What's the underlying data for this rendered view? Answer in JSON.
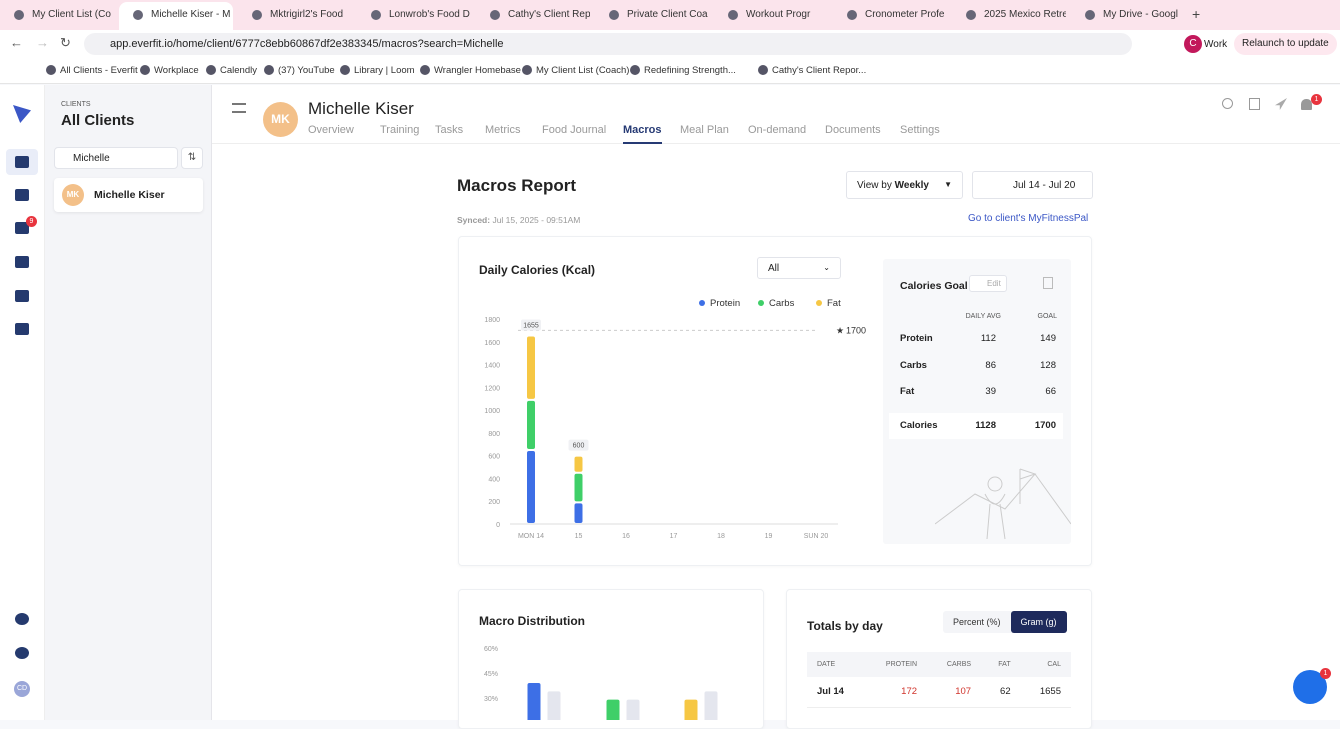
{
  "browser": {
    "tabs": [
      "My Client List (Co",
      "Michelle Kiser - M",
      "Mktrigirl2's Food ",
      "Lonwrob's Food D",
      "Cathy's Client Rep",
      "Private Client Coa",
      "Workout Progr",
      "Cronometer Profe",
      "2025 Mexico Retre",
      "My Drive - Googl"
    ],
    "active_tab": 1,
    "url": "app.everfit.io/home/client/6777c8ebb60867df2e383345/macros?search=Michelle",
    "profile_initial": "C",
    "profile": "Work",
    "relaunch": "Relaunch to update",
    "bookmarks": [
      "All Clients - Everfit",
      "Workplace",
      "Calendly",
      "(37) YouTube",
      "Library | Loom",
      "Wrangler Homebase",
      "My Client List (Coach)",
      "Redefining Strength...",
      "Cathy's Client Repor..."
    ]
  },
  "sidebar": {
    "message_badge": "9",
    "user_initials": "CD"
  },
  "clients": {
    "label": "CLIENTS",
    "title": "All Clients",
    "search": "Michelle",
    "items": [
      {
        "initials": "MK",
        "name": "Michelle Kiser"
      }
    ]
  },
  "header": {
    "initials": "MK",
    "name": "Michelle Kiser",
    "nav": [
      "Overview",
      "Training",
      "Tasks",
      "Metrics",
      "Food Journal",
      "Macros",
      "Meal Plan",
      "On-demand",
      "Documents",
      "Settings"
    ],
    "active_nav": 5,
    "notification_badge": "1"
  },
  "report": {
    "title": "Macros Report",
    "view_by": "View by",
    "view": "Weekly",
    "date_range": "Jul 14 - Jul 20",
    "synced_label": "Synced:",
    "synced": "Jul 15, 2025 - 09:51AM",
    "mfp_link": "Go to client's MyFitnessPal"
  },
  "chart_data": [
    {
      "type": "stacked_bar",
      "title": "Daily Calories (Kcal)",
      "filter": "All",
      "categories": [
        "MON 14",
        "15",
        "16",
        "17",
        "18",
        "19",
        "SUN 20"
      ],
      "series": [
        {
          "name": "Protein",
          "color": "#3d6fe6",
          "values": [
            650,
            190,
            null,
            null,
            null,
            null,
            null
          ]
        },
        {
          "name": "Carbs",
          "color": "#3fcf68",
          "values": [
            440,
            260,
            null,
            null,
            null,
            null,
            null
          ]
        },
        {
          "name": "Fat",
          "color": "#f6c744",
          "values": [
            565,
            150,
            null,
            null,
            null,
            null,
            null
          ]
        }
      ],
      "totals": [
        1655,
        600,
        null,
        null,
        null,
        null,
        null
      ],
      "goal": 1700,
      "ylim": [
        0,
        1800
      ],
      "yticks": [
        0,
        200,
        400,
        600,
        800,
        1000,
        1200,
        1400,
        1600,
        1800
      ]
    },
    {
      "type": "grouped_bar",
      "title": "Macro Distribution",
      "categories": [
        null,
        null,
        null
      ],
      "series": [
        {
          "color": "#3d6fe6",
          "values": [
            39,
            null,
            null
          ]
        },
        {
          "color": "#3fcf68",
          "values": [
            null,
            29,
            null
          ]
        },
        {
          "color": "#f6c744",
          "values": [
            null,
            null,
            29
          ]
        },
        {
          "color": "#e4e6ee",
          "values": [
            34,
            29,
            34
          ]
        }
      ],
      "ylim": [
        0,
        60
      ],
      "yticks": [
        {
          "value": 30,
          "label": "30%"
        },
        {
          "value": 45,
          "label": "45%"
        },
        {
          "value": 60,
          "label": "60%"
        }
      ]
    }
  ],
  "goal_panel": {
    "title": "Calories Goal",
    "edit": "Edit",
    "headers": [
      "DAILY AVG",
      "GOAL"
    ],
    "rows": [
      [
        "Protein",
        112,
        149
      ],
      [
        "Carbs",
        86,
        128
      ],
      [
        "Fat",
        39,
        66
      ],
      [
        "Calories",
        1128,
        1700
      ]
    ]
  },
  "totals_by_day": {
    "title": "Totals by day",
    "toggles": [
      "Percent (%)",
      "Gram (g)"
    ],
    "active_toggle": 1,
    "headers": [
      "DATE",
      "PROTEIN",
      "CARBS",
      "FAT",
      "CAL"
    ],
    "rows": [
      [
        "Jul 14",
        172,
        107,
        62,
        1655
      ]
    ]
  },
  "chat_badge": "1"
}
